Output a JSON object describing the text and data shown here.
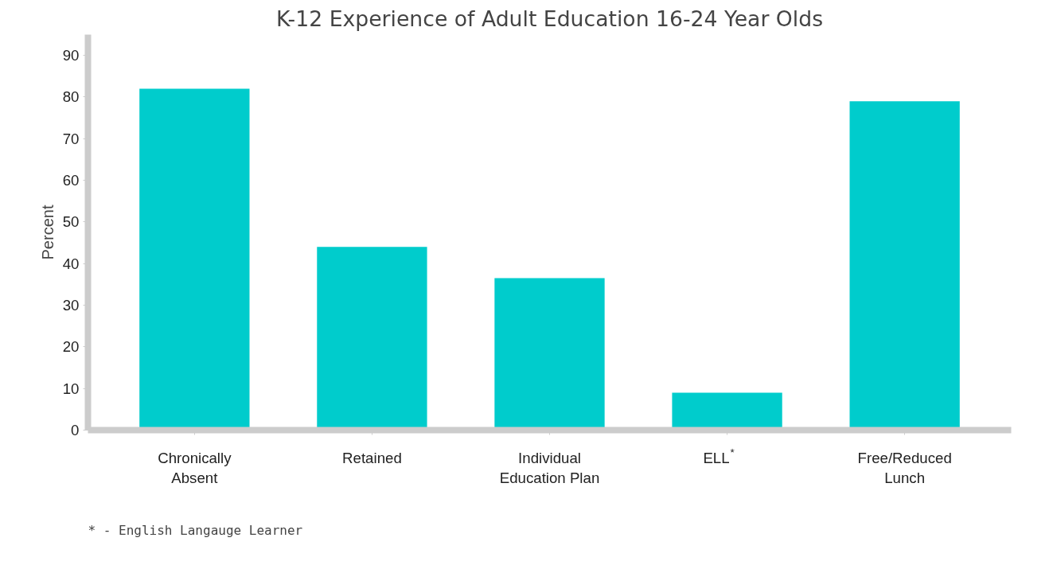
{
  "chart_data": {
    "type": "bar",
    "title": "K-12 Experience of Adult Education 16-24 Year Olds",
    "ylabel": "Percent",
    "categories": [
      "Chronically\nAbsent",
      "Retained",
      "Individual\nEducation Plan",
      "ELL$^{*}$",
      "Free/Reduced\nLunch"
    ],
    "values": [
      82,
      44,
      36.5,
      9,
      79
    ],
    "color": "#00cccc",
    "ylim": [
      0,
      95
    ],
    "yticks": [
      0,
      10,
      20,
      30,
      40,
      50,
      60,
      70,
      80,
      90
    ],
    "grid": false,
    "annotations": [
      "* - English Langauge Learner"
    ]
  }
}
